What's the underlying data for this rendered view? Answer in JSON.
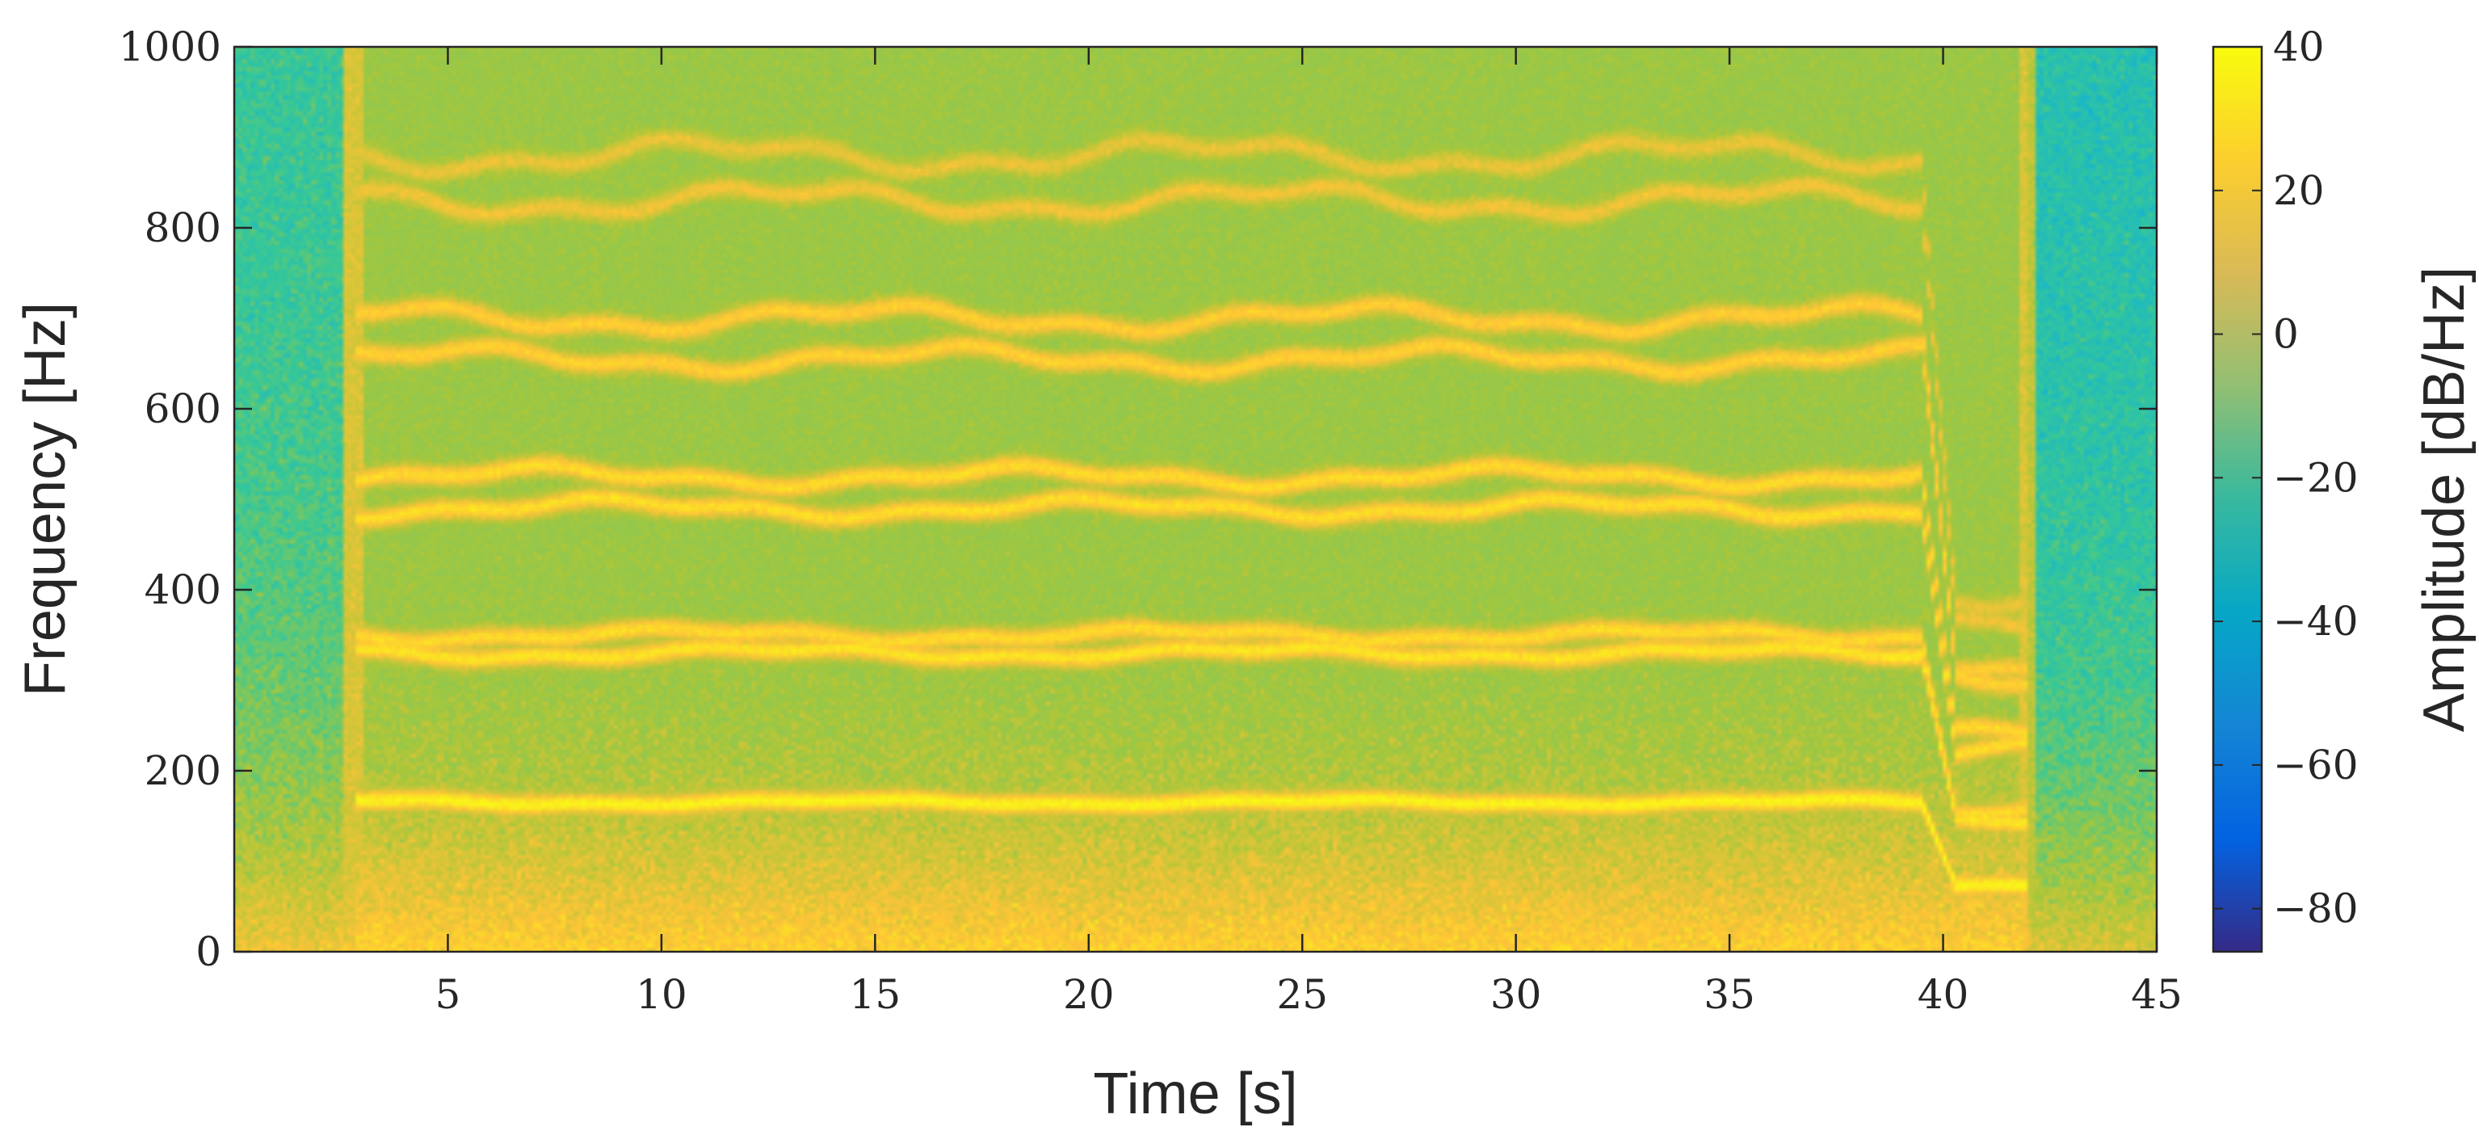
{
  "chart_data": {
    "type": "heatmap",
    "title": "",
    "xlabel": "Time [s]",
    "ylabel": "Frequency [Hz]",
    "colorbar_label": "Amplitude [dB/Hz]",
    "xlim": [
      0,
      45
    ],
    "ylim": [
      0,
      1000
    ],
    "clim": [
      -86,
      40
    ],
    "x_ticks": [
      5,
      10,
      15,
      20,
      25,
      30,
      35,
      40,
      45
    ],
    "y_ticks": [
      0,
      200,
      400,
      600,
      800,
      1000
    ],
    "colorbar_ticks": [
      40,
      20,
      0,
      -20,
      -40,
      -60,
      -80
    ],
    "colormap": "parula",
    "grid": false,
    "signal_start_s": 2.8,
    "signal_drop_s": 39.5,
    "signal_end_s": 42,
    "harmonics": [
      {
        "name": "h1",
        "frequency_hz": 165,
        "amplitude_db": 38
      },
      {
        "name": "h2",
        "frequency_hz": 330,
        "amplitude_db": 33
      },
      {
        "name": "h2b",
        "frequency_hz": 350,
        "amplitude_db": 30
      },
      {
        "name": "h3",
        "frequency_hz": 490,
        "amplitude_db": 31
      },
      {
        "name": "h3b",
        "frequency_hz": 525,
        "amplitude_db": 30
      },
      {
        "name": "h4",
        "frequency_hz": 655,
        "amplitude_db": 27
      },
      {
        "name": "h4b",
        "frequency_hz": 700,
        "amplitude_db": 26
      },
      {
        "name": "h5",
        "frequency_hz": 830,
        "amplitude_db": 20
      },
      {
        "name": "h5b",
        "frequency_hz": 880,
        "amplitude_db": 18
      }
    ],
    "background_db": {
      "low_freq": 20,
      "high_freq": -15
    }
  }
}
